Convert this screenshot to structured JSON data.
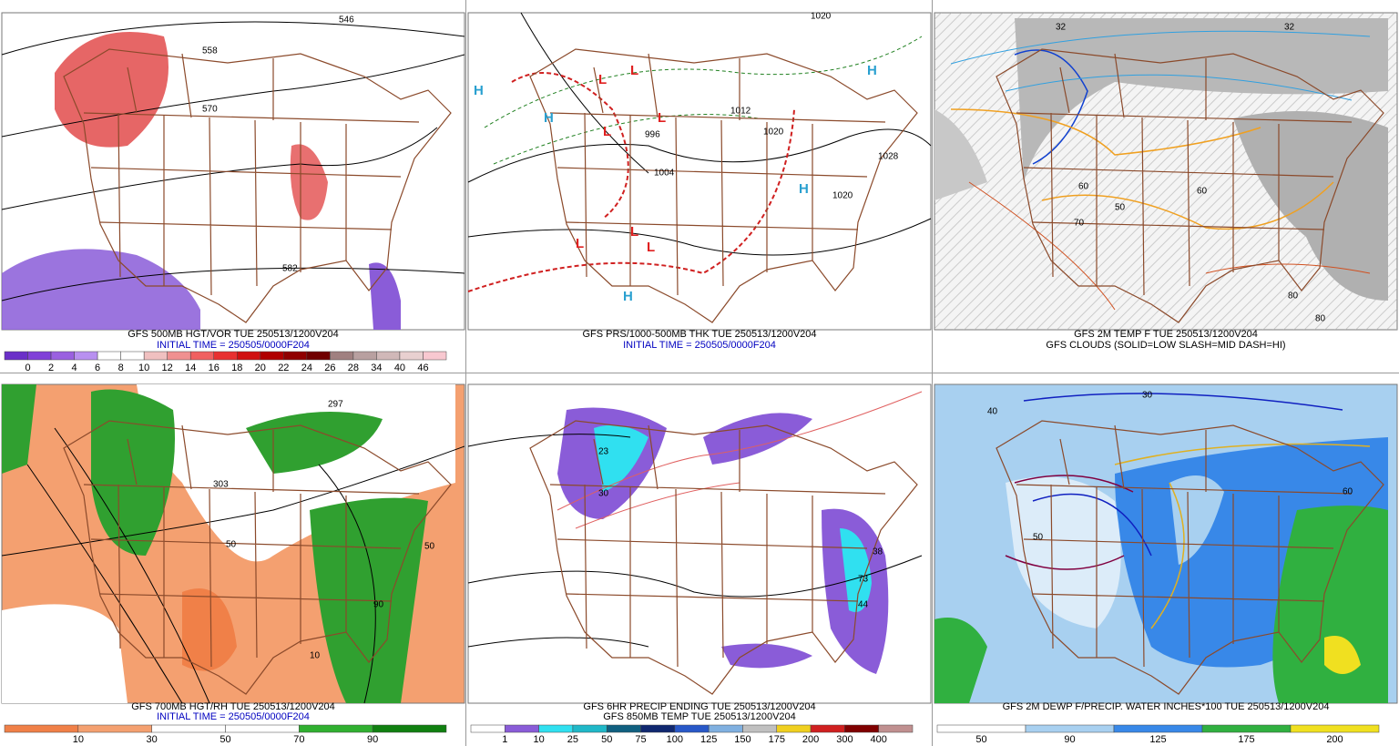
{
  "panels": [
    {
      "titles": [
        {
          "text": "GFS 500MB HGT/VOR TUE 250513/1200V204",
          "color": "#000000"
        },
        {
          "text": "INITIAL TIME = 250505/0000F204",
          "color": "#0000c0"
        }
      ],
      "colorbar": {
        "label_at": "edge",
        "colors": [
          "#6a2fc8",
          "#8040d8",
          "#9a60e0",
          "#b890f0",
          "#ffffff",
          "#ffffff",
          "#f0c0c0",
          "#f09090",
          "#f06060",
          "#e83030",
          "#d01010",
          "#b00000",
          "#900000",
          "#700000",
          "#a08080",
          "#b8a0a0",
          "#d0b8b8",
          "#e8d0d0",
          "#f8c8d0"
        ],
        "labels": [
          "0",
          "2",
          "4",
          "6",
          "8",
          "10",
          "12",
          "14",
          "16",
          "18",
          "20",
          "22",
          "24",
          "26",
          "28",
          "34",
          "40",
          "46"
        ]
      },
      "map_labels": [
        "546",
        "558",
        "570",
        "582"
      ]
    },
    {
      "titles": [
        {
          "text": "GFS PRS/1000-500MB THK TUE 250513/1200V204",
          "color": "#000000"
        },
        {
          "text": "INITIAL TIME = 250505/0000F204",
          "color": "#0000c0"
        }
      ],
      "map_labels": [
        "1020",
        "1028",
        "1004",
        "996",
        "1012",
        "1020",
        "1020"
      ]
    },
    {
      "titles": [
        {
          "text": "GFS 2M TEMP F TUE 250513/1200V204",
          "color": "#000000"
        },
        {
          "text": "GFS CLOUDS (SOLID=LOW SLASH=MID DASH=HI)",
          "color": "#000000"
        }
      ],
      "map_labels": [
        "32",
        "32",
        "50",
        "60",
        "70",
        "80",
        "80",
        "60"
      ]
    },
    {
      "titles": [
        {
          "text": "GFS 700MB HGT/RH TUE 250513/1200V204",
          "color": "#000000"
        },
        {
          "text": "INITIAL TIME = 250505/0000F204",
          "color": "#0000c0"
        }
      ],
      "colorbar": {
        "label_at": "edge",
        "colors": [
          "#f08048",
          "#f4a070",
          "#ffffff",
          "#ffffff",
          "#30b030",
          "#108010"
        ],
        "labels": [
          "10",
          "30",
          "50",
          "70",
          "90"
        ]
      },
      "map_labels": [
        "297",
        "303",
        "50",
        "90",
        "10",
        "50"
      ]
    },
    {
      "titles": [
        {
          "text": "GFS 6HR PRECIP ENDING TUE 250513/1200V204",
          "color": "#000000"
        },
        {
          "text": "GFS 850MB TEMP TUE 250513/1200V204",
          "color": "#000000"
        }
      ],
      "colorbar": {
        "label_at": "edge",
        "colors": [
          "#ffffff",
          "#8a5cd8",
          "#30e0f0",
          "#20b8c8",
          "#106080",
          "#102870",
          "#2858c8",
          "#80b0e0",
          "#c0c0c0",
          "#f0d020",
          "#d02020",
          "#800000",
          "#c09090"
        ],
        "labels": [
          "1",
          "10",
          "25",
          "50",
          "75",
          "100",
          "125",
          "150",
          "175",
          "200",
          "300",
          "400"
        ]
      },
      "map_labels": [
        "38",
        "73",
        "44",
        "23",
        "30"
      ]
    },
    {
      "titles": [
        {
          "text": "GFS 2M DEWP F/PRECIP. WATER INCHES*100 TUE 250513/1200V204",
          "color": "#000000"
        }
      ],
      "colorbar": {
        "label_at": "center",
        "colors": [
          "#ffffff",
          "#a8d0f0",
          "#3888e8",
          "#30b040",
          "#f0e020"
        ],
        "labels": [
          "50",
          "90",
          "125",
          "175",
          "200"
        ]
      },
      "map_labels": [
        "30",
        "40",
        "50",
        "60"
      ]
    }
  ]
}
